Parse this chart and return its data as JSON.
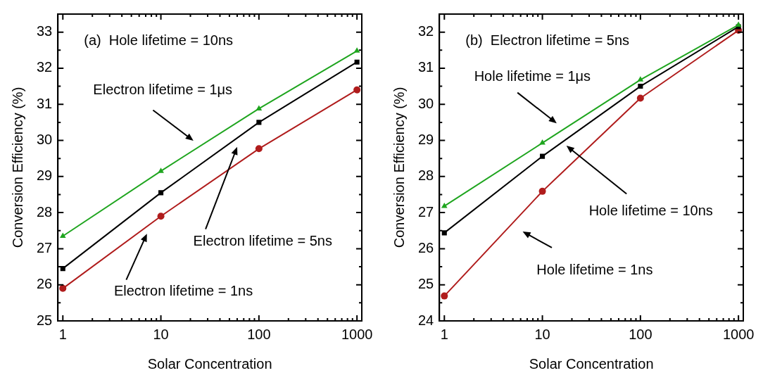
{
  "chart_data": [
    {
      "type": "line",
      "title": "(a)  Hole lifetime = 10ns",
      "xlabel": "Solar Concentration",
      "ylabel": "Conversion Efficiency (%)",
      "log": "x",
      "x": [
        1,
        10,
        100,
        1000
      ],
      "series": [
        {
          "color": "#1fa51f",
          "marker": "triangle",
          "values": [
            27.35,
            29.15,
            30.88,
            32.48
          ]
        },
        {
          "color": "#000000",
          "marker": "square",
          "values": [
            26.45,
            28.55,
            30.5,
            32.17
          ]
        },
        {
          "color": "#b01c1c",
          "marker": "circle",
          "values": [
            25.9,
            27.9,
            29.77,
            31.4
          ]
        }
      ],
      "xlim": [
        0.89,
        1120
      ],
      "ylim": [
        25,
        33.5
      ],
      "xticks": [
        1,
        {
          "value": 2,
          "label": null
        },
        {
          "value": 3,
          "label": null
        },
        {
          "value": 4,
          "label": null
        },
        {
          "value": 5,
          "label": null
        },
        {
          "value": 6,
          "label": null
        },
        {
          "value": 7,
          "label": null
        },
        {
          "value": 8,
          "label": null
        },
        {
          "value": 9,
          "label": null
        },
        10,
        {
          "value": 20,
          "label": null
        },
        {
          "value": 30,
          "label": null
        },
        {
          "value": 40,
          "label": null
        },
        {
          "value": 50,
          "label": null
        },
        {
          "value": 60,
          "label": null
        },
        {
          "value": 70,
          "label": null
        },
        {
          "value": 80,
          "label": null
        },
        {
          "value": 90,
          "label": null
        },
        100,
        {
          "value": 200,
          "label": null
        },
        {
          "value": 300,
          "label": null
        },
        {
          "value": 400,
          "label": null
        },
        {
          "value": 500,
          "label": null
        },
        {
          "value": 600,
          "label": null
        },
        {
          "value": 700,
          "label": null
        },
        {
          "value": 800,
          "label": null
        },
        {
          "value": 900,
          "label": null
        },
        1000
      ],
      "yticks": [
        25,
        {
          "value": 25.5,
          "label": null
        },
        26,
        {
          "value": 26.5,
          "label": null
        },
        27,
        {
          "value": 27.5,
          "label": null
        },
        28,
        {
          "value": 28.5,
          "label": null
        },
        29,
        {
          "value": 29.5,
          "label": null
        },
        30,
        {
          "value": 30.5,
          "label": null
        },
        31,
        {
          "value": 31.5,
          "label": null
        },
        32,
        {
          "value": 32.5,
          "label": null
        },
        33
      ],
      "annotations": [
        "Electron lifetime = 1μs",
        "Electron lifetime = 5ns",
        "Electron lifetime = 1ns"
      ],
      "legend": false
    },
    {
      "type": "line",
      "title": "(b)  Electron lifetime = 5ns",
      "xlabel": "Solar Concentration",
      "ylabel": "Conversion Efficiency (%)",
      "log": "x",
      "x": [
        1,
        10,
        100,
        1000
      ],
      "series": [
        {
          "color": "#1fa51f",
          "marker": "triangle",
          "values": [
            27.18,
            28.93,
            30.68,
            32.2
          ]
        },
        {
          "color": "#000000",
          "marker": "square",
          "values": [
            26.44,
            28.56,
            30.5,
            32.15
          ]
        },
        {
          "color": "#b01c1c",
          "marker": "circle",
          "values": [
            24.69,
            27.59,
            30.17,
            32.05
          ]
        }
      ],
      "xlim": [
        0.89,
        1120
      ],
      "ylim": [
        24,
        32.5
      ],
      "xticks": [
        1,
        {
          "value": 2,
          "label": null
        },
        {
          "value": 3,
          "label": null
        },
        {
          "value": 4,
          "label": null
        },
        {
          "value": 5,
          "label": null
        },
        {
          "value": 6,
          "label": null
        },
        {
          "value": 7,
          "label": null
        },
        {
          "value": 8,
          "label": null
        },
        {
          "value": 9,
          "label": null
        },
        10,
        {
          "value": 20,
          "label": null
        },
        {
          "value": 30,
          "label": null
        },
        {
          "value": 40,
          "label": null
        },
        {
          "value": 50,
          "label": null
        },
        {
          "value": 60,
          "label": null
        },
        {
          "value": 70,
          "label": null
        },
        {
          "value": 80,
          "label": null
        },
        {
          "value": 90,
          "label": null
        },
        100,
        {
          "value": 200,
          "label": null
        },
        {
          "value": 300,
          "label": null
        },
        {
          "value": 400,
          "label": null
        },
        {
          "value": 500,
          "label": null
        },
        {
          "value": 600,
          "label": null
        },
        {
          "value": 700,
          "label": null
        },
        {
          "value": 800,
          "label": null
        },
        {
          "value": 900,
          "label": null
        },
        1000
      ],
      "yticks": [
        24,
        {
          "value": 24.5,
          "label": null
        },
        25,
        {
          "value": 25.5,
          "label": null
        },
        26,
        {
          "value": 26.5,
          "label": null
        },
        27,
        {
          "value": 27.5,
          "label": null
        },
        28,
        {
          "value": 28.5,
          "label": null
        },
        29,
        {
          "value": 29.5,
          "label": null
        },
        30,
        {
          "value": 30.5,
          "label": null
        },
        31,
        {
          "value": 31.5,
          "label": null
        },
        32
      ],
      "annotations": [
        "Hole lifetime = 1μs",
        "Hole lifetime = 10ns",
        "Hole lifetime = 1ns"
      ],
      "legend": false
    }
  ]
}
